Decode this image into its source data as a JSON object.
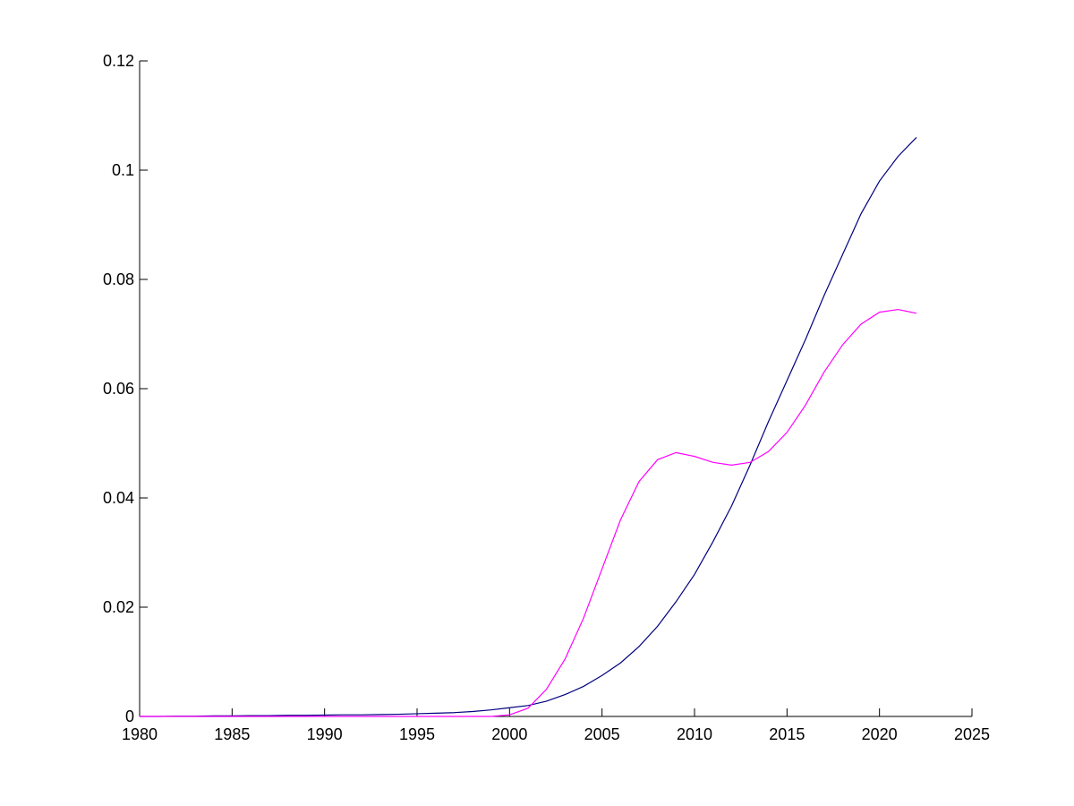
{
  "chart_data": {
    "type": "line",
    "x": [
      1980,
      1981,
      1982,
      1983,
      1984,
      1985,
      1986,
      1987,
      1988,
      1989,
      1990,
      1991,
      1992,
      1993,
      1994,
      1995,
      1996,
      1997,
      1998,
      1999,
      2000,
      2001,
      2002,
      2003,
      2004,
      2005,
      2006,
      2007,
      2008,
      2009,
      2010,
      2011,
      2012,
      2013,
      2014,
      2015,
      2016,
      2017,
      2018,
      2019,
      2020,
      2021,
      2022
    ],
    "series": [
      {
        "color": "#00007f",
        "values": [
          0,
          0,
          5e-05,
          5e-05,
          0.0001,
          0.0001,
          0.00015,
          0.00015,
          0.0002,
          0.0002,
          0.00025,
          0.0003,
          0.0003,
          0.00035,
          0.0004,
          0.0005,
          0.0006,
          0.0007,
          0.0009,
          0.0012,
          0.0016,
          0.002,
          0.0028,
          0.004,
          0.0055,
          0.0075,
          0.0098,
          0.0128,
          0.0165,
          0.021,
          0.026,
          0.032,
          0.0385,
          0.046,
          0.054,
          0.0615,
          0.069,
          0.077,
          0.0845,
          0.092,
          0.098,
          0.1025,
          0.106
        ]
      },
      {
        "color": "#ff00ff",
        "values": [
          0,
          0,
          0,
          0,
          0,
          0,
          0,
          0,
          0,
          0,
          0,
          0,
          0,
          0,
          0,
          0,
          0,
          0,
          0,
          0,
          0.0003,
          0.0015,
          0.005,
          0.0105,
          0.018,
          0.027,
          0.036,
          0.043,
          0.047,
          0.0483,
          0.0476,
          0.0465,
          0.046,
          0.0465,
          0.0485,
          0.052,
          0.057,
          0.063,
          0.068,
          0.0718,
          0.074,
          0.0745,
          0.0738
        ]
      }
    ],
    "xlim": [
      1980,
      2025
    ],
    "xticks": [
      1980,
      1985,
      1990,
      1995,
      2000,
      2005,
      2010,
      2015,
      2020,
      2025
    ],
    "ylim": [
      0,
      0.12
    ],
    "yticks": [
      0,
      0.02,
      0.04,
      0.06,
      0.08,
      0.1,
      0.12
    ]
  }
}
